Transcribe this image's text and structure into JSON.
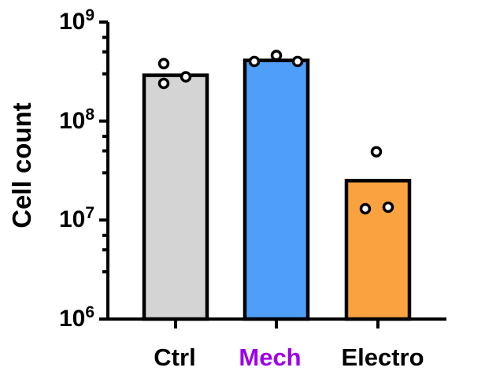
{
  "chart_data": {
    "type": "bar",
    "title": "",
    "ylabel": "Cell count",
    "xlabel": "",
    "yscale": "log",
    "ylim": [
      1000000.0,
      1000000000.0
    ],
    "y_major_ticks": [
      1000000.0,
      10000000.0,
      100000000.0,
      1000000000.0
    ],
    "y_major_tick_exponents": [
      6,
      7,
      8,
      9
    ],
    "y_tick_base": "10",
    "y_minor_tick_mantissas": [
      3,
      5,
      7
    ],
    "grid": false,
    "legend_position": "none",
    "categories": [
      "Ctrl",
      "Mech",
      "Electro"
    ],
    "series": [
      {
        "label": "Ctrl",
        "label_color": "#000000",
        "bar_color": "#D4D4D4",
        "bar_value": 290000000.0,
        "points": [
          {
            "value": 380000000.0,
            "dx": -15
          },
          {
            "value": 240000000.0,
            "dx": -15
          },
          {
            "value": 280000000.0,
            "dx": 13
          }
        ]
      },
      {
        "label": "Mech",
        "label_color": "#9D00E8",
        "bar_color": "#4F9EF8",
        "bar_value": 410000000.0,
        "points": [
          {
            "value": 400000000.0,
            "dx": -28
          },
          {
            "value": 460000000.0,
            "dx": 0
          },
          {
            "value": 400000000.0,
            "dx": 27
          }
        ]
      },
      {
        "label": "Electro",
        "label_color": "#000000",
        "bar_color": "#FAA23F",
        "bar_value": 25000000.0,
        "points": [
          {
            "value": 49000000.0,
            "dx": -2
          },
          {
            "value": 13000000.0,
            "dx": -16
          },
          {
            "value": 13500000.0,
            "dx": 13
          }
        ]
      }
    ],
    "point_style": {
      "fill": "#FFFFFF",
      "stroke": "#000000"
    },
    "axis_color": "#000000",
    "background_color": "#FFFFFF"
  }
}
